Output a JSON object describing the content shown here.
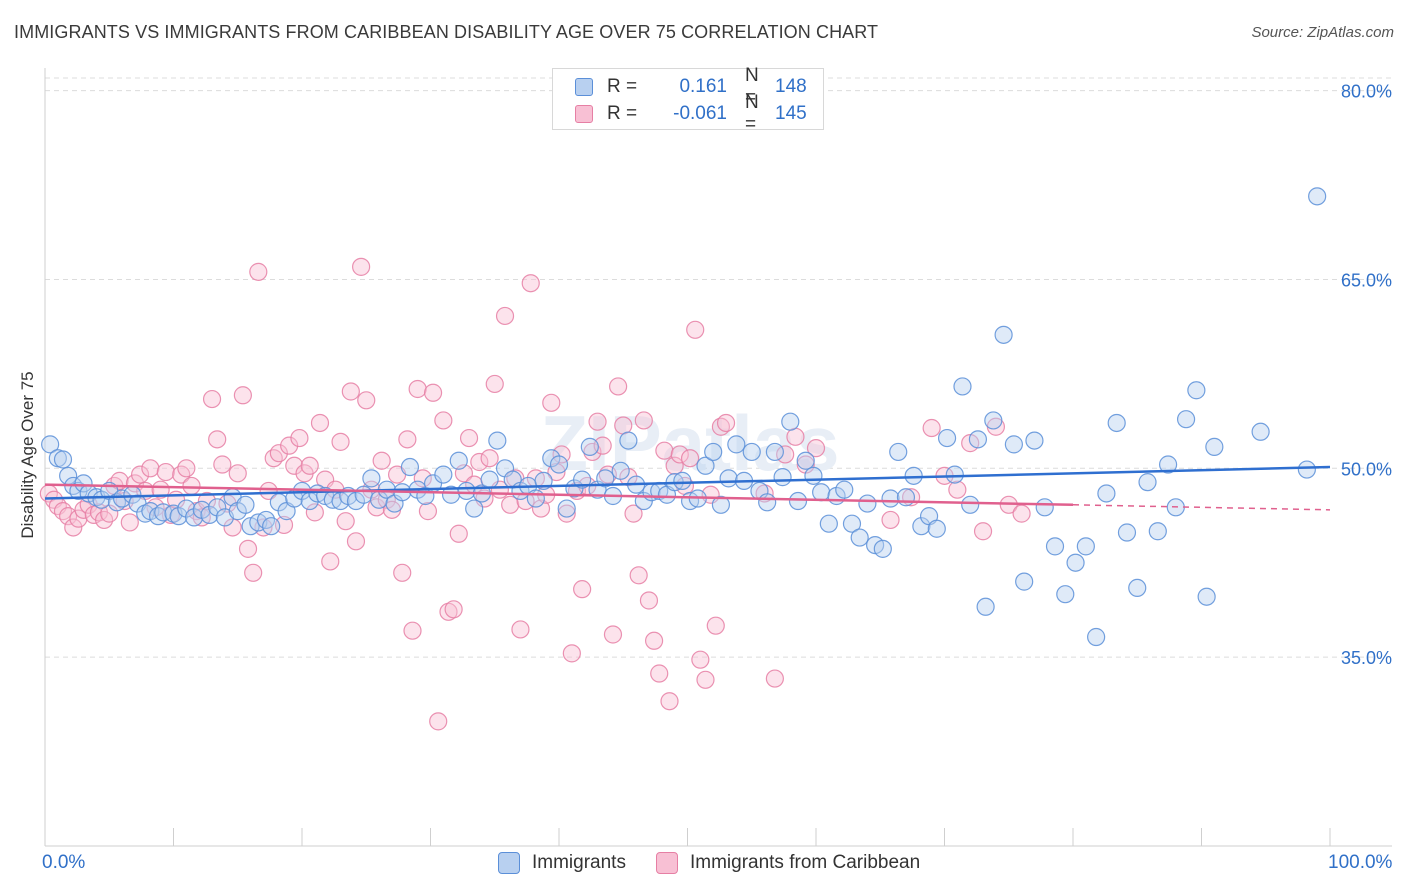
{
  "header": {
    "title": "IMMIGRANTS VS IMMIGRANTS FROM CARIBBEAN DISABILITY AGE OVER 75 CORRELATION CHART",
    "source": "Source: ZipAtlas.com"
  },
  "legend": {
    "r_label": "R =",
    "n_label": "N =",
    "rows": [
      {
        "r": "0.161",
        "n": "148"
      },
      {
        "r": "-0.061",
        "n": "145"
      }
    ]
  },
  "bottom_legend": {
    "items": [
      "Immigrants",
      "Immigrants from Caribbean"
    ]
  },
  "axis_edges": {
    "x_left": "0.0%",
    "x_right": "100.0%"
  },
  "colors": {
    "blue_fill": "#b8d0f0",
    "blue_stroke": "#5b8fd8",
    "blue_line": "#2f6fd0",
    "pink_fill": "#f8c0d4",
    "pink_stroke": "#e67fa4",
    "pink_line": "#e0608e",
    "grid": "#dcdcdc",
    "tick_text": "#3070c8"
  },
  "chart_data": {
    "type": "scatter",
    "title": "IMMIGRANTS VS IMMIGRANTS FROM CARIBBEAN DISABILITY AGE OVER 75 CORRELATION CHART",
    "xlabel": "",
    "ylabel": "Disability Age Over 75",
    "xlim": [
      0,
      100
    ],
    "ylim": [
      20,
      81
    ],
    "y_ticks": [
      35,
      50,
      65,
      80
    ],
    "y_tick_labels": [
      "35.0%",
      "50.0%",
      "65.0%",
      "80.0%"
    ],
    "x_tick_labels": [
      "0.0%",
      "100.0%"
    ],
    "grid": true,
    "legend_position": "top-center",
    "series": [
      {
        "name": "Immigrants",
        "r": 0.161,
        "n": 148,
        "trend": {
          "x": [
            0,
            100
          ],
          "y": [
            47.6,
            50.1
          ],
          "dashed_from": null
        },
        "points": [
          [
            0.4,
            51.9
          ],
          [
            1.0,
            50.8
          ],
          [
            1.4,
            50.7
          ],
          [
            1.8,
            49.4
          ],
          [
            2.2,
            48.6
          ],
          [
            2.6,
            48.2
          ],
          [
            3.0,
            48.8
          ],
          [
            3.4,
            48.0
          ],
          [
            4.0,
            47.7
          ],
          [
            4.4,
            47.5
          ],
          [
            5.0,
            48.2
          ],
          [
            5.6,
            47.3
          ],
          [
            6.0,
            47.6
          ],
          [
            6.8,
            47.9
          ],
          [
            7.2,
            47.2
          ],
          [
            7.8,
            46.4
          ],
          [
            8.2,
            46.6
          ],
          [
            8.8,
            46.2
          ],
          [
            9.2,
            46.5
          ],
          [
            10.0,
            46.4
          ],
          [
            10.4,
            46.2
          ],
          [
            11.0,
            46.8
          ],
          [
            11.6,
            46.1
          ],
          [
            12.2,
            46.7
          ],
          [
            12.8,
            46.3
          ],
          [
            13.4,
            46.9
          ],
          [
            14.0,
            46.1
          ],
          [
            14.6,
            47.7
          ],
          [
            15.0,
            46.6
          ],
          [
            15.6,
            47.1
          ],
          [
            16.0,
            45.4
          ],
          [
            16.6,
            45.7
          ],
          [
            17.2,
            45.9
          ],
          [
            17.6,
            45.4
          ],
          [
            18.2,
            47.3
          ],
          [
            18.8,
            46.6
          ],
          [
            19.4,
            47.6
          ],
          [
            20.0,
            48.2
          ],
          [
            20.6,
            47.4
          ],
          [
            21.2,
            48.0
          ],
          [
            21.8,
            47.8
          ],
          [
            22.4,
            47.5
          ],
          [
            23.0,
            47.4
          ],
          [
            23.6,
            47.8
          ],
          [
            24.2,
            47.4
          ],
          [
            24.8,
            47.9
          ],
          [
            25.4,
            49.2
          ],
          [
            26.0,
            47.5
          ],
          [
            26.6,
            48.3
          ],
          [
            27.2,
            47.2
          ],
          [
            27.8,
            48.1
          ],
          [
            28.4,
            50.1
          ],
          [
            29.0,
            48.3
          ],
          [
            29.6,
            47.8
          ],
          [
            30.2,
            48.8
          ],
          [
            31.0,
            49.5
          ],
          [
            31.6,
            47.9
          ],
          [
            32.2,
            50.6
          ],
          [
            32.8,
            48.2
          ],
          [
            33.4,
            46.8
          ],
          [
            34.0,
            48.0
          ],
          [
            34.6,
            49.1
          ],
          [
            35.2,
            52.2
          ],
          [
            35.8,
            50.0
          ],
          [
            36.4,
            49.1
          ],
          [
            37.0,
            48.2
          ],
          [
            37.6,
            48.6
          ],
          [
            38.2,
            47.6
          ],
          [
            38.8,
            49.0
          ],
          [
            39.4,
            50.8
          ],
          [
            40.0,
            50.3
          ],
          [
            40.6,
            46.8
          ],
          [
            41.2,
            48.4
          ],
          [
            41.8,
            49.1
          ],
          [
            42.4,
            51.7
          ],
          [
            43.0,
            48.3
          ],
          [
            43.6,
            49.2
          ],
          [
            44.2,
            47.8
          ],
          [
            44.8,
            49.8
          ],
          [
            45.4,
            52.2
          ],
          [
            46.0,
            48.7
          ],
          [
            46.6,
            47.4
          ],
          [
            47.2,
            48.1
          ],
          [
            47.8,
            48.2
          ],
          [
            48.4,
            47.9
          ],
          [
            49.0,
            48.9
          ],
          [
            49.6,
            49.0
          ],
          [
            50.2,
            47.4
          ],
          [
            50.8,
            47.6
          ],
          [
            51.4,
            50.2
          ],
          [
            52.0,
            51.3
          ],
          [
            52.6,
            47.1
          ],
          [
            53.2,
            49.2
          ],
          [
            53.8,
            51.9
          ],
          [
            54.4,
            49.0
          ],
          [
            55.0,
            51.3
          ],
          [
            55.6,
            48.2
          ],
          [
            56.2,
            47.3
          ],
          [
            56.8,
            51.3
          ],
          [
            57.4,
            49.3
          ],
          [
            58.0,
            53.7
          ],
          [
            58.6,
            47.4
          ],
          [
            59.2,
            50.6
          ],
          [
            59.8,
            49.4
          ],
          [
            60.4,
            48.1
          ],
          [
            61.0,
            45.6
          ],
          [
            61.6,
            47.8
          ],
          [
            62.2,
            48.3
          ],
          [
            62.8,
            45.6
          ],
          [
            63.4,
            44.5
          ],
          [
            64.0,
            47.2
          ],
          [
            64.6,
            43.9
          ],
          [
            65.2,
            43.6
          ],
          [
            65.8,
            47.6
          ],
          [
            66.4,
            51.3
          ],
          [
            67.0,
            47.7
          ],
          [
            67.6,
            49.4
          ],
          [
            68.2,
            45.4
          ],
          [
            68.8,
            46.2
          ],
          [
            69.4,
            45.2
          ],
          [
            70.2,
            52.4
          ],
          [
            70.8,
            49.5
          ],
          [
            71.4,
            56.5
          ],
          [
            72.0,
            47.1
          ],
          [
            72.6,
            52.3
          ],
          [
            73.2,
            39.0
          ],
          [
            73.8,
            53.8
          ],
          [
            74.6,
            60.6
          ],
          [
            75.4,
            51.9
          ],
          [
            76.2,
            41.0
          ],
          [
            77.0,
            52.2
          ],
          [
            77.8,
            46.9
          ],
          [
            78.6,
            43.8
          ],
          [
            79.4,
            40.0
          ],
          [
            80.2,
            42.5
          ],
          [
            81.0,
            43.8
          ],
          [
            81.8,
            36.6
          ],
          [
            82.6,
            48.0
          ],
          [
            83.4,
            53.6
          ],
          [
            84.2,
            44.9
          ],
          [
            85.0,
            40.5
          ],
          [
            85.8,
            48.9
          ],
          [
            86.6,
            45.0
          ],
          [
            87.4,
            50.3
          ],
          [
            88.0,
            46.9
          ],
          [
            88.8,
            53.9
          ],
          [
            89.6,
            56.2
          ],
          [
            90.4,
            39.8
          ],
          [
            91.0,
            51.7
          ],
          [
            94.6,
            52.9
          ],
          [
            98.2,
            49.9
          ],
          [
            99.0,
            71.6
          ]
        ]
      },
      {
        "name": "Immigrants from Caribbean",
        "r": -0.061,
        "n": 145,
        "trend": {
          "x": [
            0,
            100
          ],
          "y": [
            48.7,
            46.7
          ],
          "dashed_from": 80
        },
        "points": [
          [
            0.3,
            48.0
          ],
          [
            0.7,
            47.5
          ],
          [
            1.0,
            47.0
          ],
          [
            1.4,
            46.6
          ],
          [
            1.8,
            46.2
          ],
          [
            2.2,
            45.3
          ],
          [
            2.6,
            46.0
          ],
          [
            3.0,
            46.7
          ],
          [
            3.4,
            47.1
          ],
          [
            3.8,
            46.3
          ],
          [
            4.2,
            46.5
          ],
          [
            4.6,
            45.9
          ],
          [
            5.0,
            46.4
          ],
          [
            5.4,
            48.6
          ],
          [
            5.8,
            49.0
          ],
          [
            6.2,
            47.4
          ],
          [
            6.6,
            45.7
          ],
          [
            7.0,
            48.8
          ],
          [
            7.4,
            49.5
          ],
          [
            7.8,
            48.2
          ],
          [
            8.2,
            50.0
          ],
          [
            8.6,
            46.9
          ],
          [
            9.0,
            48.3
          ],
          [
            9.4,
            49.7
          ],
          [
            9.8,
            46.3
          ],
          [
            10.2,
            47.5
          ],
          [
            10.6,
            49.5
          ],
          [
            11.0,
            50.0
          ],
          [
            11.4,
            48.6
          ],
          [
            11.8,
            46.6
          ],
          [
            12.2,
            46.1
          ],
          [
            12.6,
            47.4
          ],
          [
            13.0,
            55.5
          ],
          [
            13.4,
            52.3
          ],
          [
            13.8,
            50.3
          ],
          [
            14.2,
            47.2
          ],
          [
            14.6,
            45.3
          ],
          [
            15.0,
            49.6
          ],
          [
            15.4,
            55.8
          ],
          [
            15.8,
            43.6
          ],
          [
            16.2,
            41.7
          ],
          [
            16.6,
            65.6
          ],
          [
            17.0,
            45.3
          ],
          [
            17.4,
            48.2
          ],
          [
            17.8,
            50.8
          ],
          [
            18.2,
            51.2
          ],
          [
            18.6,
            45.5
          ],
          [
            19.0,
            51.8
          ],
          [
            19.4,
            50.2
          ],
          [
            19.8,
            52.4
          ],
          [
            20.2,
            49.6
          ],
          [
            20.6,
            50.2
          ],
          [
            21.0,
            46.5
          ],
          [
            21.4,
            53.6
          ],
          [
            21.8,
            49.1
          ],
          [
            22.2,
            42.6
          ],
          [
            22.6,
            48.3
          ],
          [
            23.0,
            52.1
          ],
          [
            23.4,
            45.8
          ],
          [
            23.8,
            56.1
          ],
          [
            24.2,
            44.2
          ],
          [
            24.6,
            66.0
          ],
          [
            25.0,
            55.4
          ],
          [
            25.4,
            48.3
          ],
          [
            25.8,
            46.9
          ],
          [
            26.2,
            50.6
          ],
          [
            26.6,
            47.5
          ],
          [
            27.0,
            46.7
          ],
          [
            27.4,
            49.5
          ],
          [
            27.8,
            41.7
          ],
          [
            28.2,
            52.3
          ],
          [
            28.6,
            37.1
          ],
          [
            29.0,
            56.3
          ],
          [
            29.4,
            49.2
          ],
          [
            29.8,
            46.6
          ],
          [
            30.2,
            56.0
          ],
          [
            30.6,
            29.9
          ],
          [
            31.0,
            53.8
          ],
          [
            31.4,
            38.6
          ],
          [
            31.8,
            38.8
          ],
          [
            32.2,
            44.8
          ],
          [
            32.6,
            49.6
          ],
          [
            33.0,
            52.4
          ],
          [
            33.4,
            48.7
          ],
          [
            33.8,
            50.5
          ],
          [
            34.2,
            47.6
          ],
          [
            34.6,
            50.8
          ],
          [
            35.0,
            56.7
          ],
          [
            35.4,
            48.3
          ],
          [
            35.8,
            62.1
          ],
          [
            36.2,
            47.1
          ],
          [
            36.6,
            49.2
          ],
          [
            37.0,
            37.2
          ],
          [
            37.4,
            47.4
          ],
          [
            37.8,
            64.7
          ],
          [
            38.2,
            49.2
          ],
          [
            38.6,
            46.8
          ],
          [
            39.0,
            47.9
          ],
          [
            39.4,
            55.2
          ],
          [
            39.8,
            49.7
          ],
          [
            40.2,
            51.1
          ],
          [
            40.6,
            46.4
          ],
          [
            41.0,
            35.3
          ],
          [
            41.4,
            48.2
          ],
          [
            41.8,
            40.4
          ],
          [
            42.2,
            48.6
          ],
          [
            42.6,
            51.3
          ],
          [
            43.0,
            53.7
          ],
          [
            43.4,
            51.8
          ],
          [
            43.8,
            49.5
          ],
          [
            44.2,
            36.8
          ],
          [
            44.6,
            56.5
          ],
          [
            45.0,
            53.4
          ],
          [
            45.4,
            49.3
          ],
          [
            45.8,
            46.4
          ],
          [
            46.2,
            41.5
          ],
          [
            46.6,
            53.8
          ],
          [
            47.0,
            39.5
          ],
          [
            47.4,
            36.3
          ],
          [
            47.8,
            33.7
          ],
          [
            48.2,
            51.4
          ],
          [
            48.6,
            31.5
          ],
          [
            49.0,
            50.2
          ],
          [
            49.4,
            51.1
          ],
          [
            49.8,
            48.6
          ],
          [
            50.2,
            50.8
          ],
          [
            50.6,
            61.0
          ],
          [
            51.0,
            34.8
          ],
          [
            51.4,
            33.2
          ],
          [
            51.8,
            47.9
          ],
          [
            52.2,
            37.5
          ],
          [
            52.6,
            53.3
          ],
          [
            53.0,
            53.6
          ],
          [
            56.0,
            48.0
          ],
          [
            56.8,
            33.3
          ],
          [
            57.6,
            51.1
          ],
          [
            58.4,
            52.5
          ],
          [
            59.2,
            50.3
          ],
          [
            60.0,
            51.6
          ],
          [
            65.8,
            45.9
          ],
          [
            67.4,
            47.7
          ],
          [
            69.0,
            53.2
          ],
          [
            70.0,
            49.4
          ],
          [
            71.0,
            48.3
          ],
          [
            72.0,
            52.0
          ],
          [
            73.0,
            45.0
          ],
          [
            74.0,
            53.3
          ],
          [
            75.0,
            47.1
          ],
          [
            76.0,
            46.4
          ]
        ]
      }
    ]
  }
}
